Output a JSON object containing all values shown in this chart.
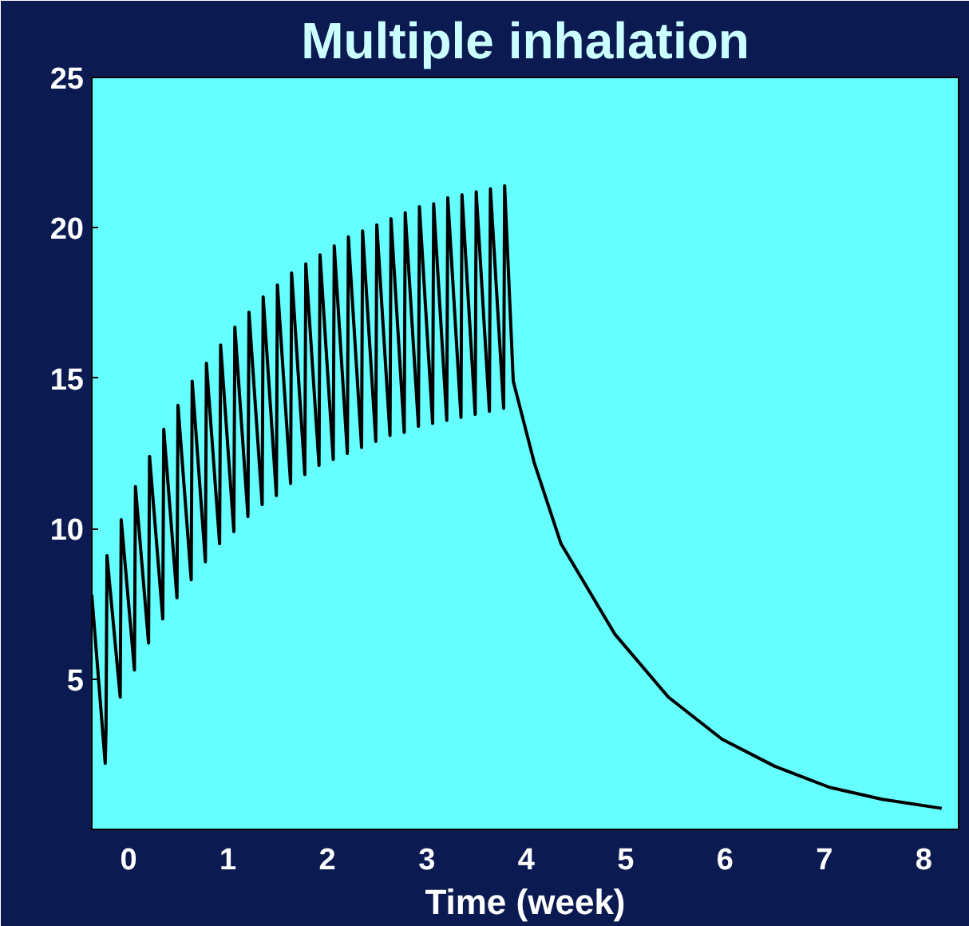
{
  "chart_data": {
    "type": "line",
    "title": "Multiple inhalation",
    "xlabel": "Time (week)",
    "xlim": [
      -0.37,
      8.35
    ],
    "ylim": [
      0,
      25
    ],
    "xticks": [
      0,
      1,
      2,
      3,
      4,
      5,
      6,
      7,
      8
    ],
    "yticks": [
      5,
      10,
      15,
      20,
      25
    ],
    "series": [
      {
        "color": "#000000",
        "x": [
          -0.37,
          -0.235,
          -0.227,
          -0.217,
          -0.084,
          -0.074,
          0.059,
          0.069,
          0.201,
          0.211,
          0.344,
          0.354,
          0.487,
          0.497,
          0.63,
          0.64,
          0.773,
          0.783,
          0.916,
          0.926,
          1.059,
          1.069,
          1.201,
          1.211,
          1.344,
          1.354,
          1.487,
          1.497,
          1.63,
          1.64,
          1.773,
          1.783,
          1.916,
          1.926,
          2.059,
          2.069,
          2.201,
          2.211,
          2.344,
          2.354,
          2.487,
          2.497,
          2.63,
          2.64,
          2.773,
          2.783,
          2.916,
          2.926,
          3.059,
          3.069,
          3.201,
          3.211,
          3.344,
          3.354,
          3.487,
          3.497,
          3.63,
          3.64,
          3.773,
          3.783,
          3.87,
          4.08,
          4.35,
          4.89,
          5.43,
          5.97,
          6.5,
          7.05,
          7.58,
          8.18
        ],
        "values": [
          7.8,
          2.2,
          3.3,
          9.1,
          4.4,
          10.3,
          5.3,
          11.4,
          6.2,
          12.4,
          7.0,
          13.3,
          7.7,
          14.1,
          8.3,
          14.9,
          8.9,
          15.5,
          9.5,
          16.1,
          9.9,
          16.7,
          10.4,
          17.2,
          10.8,
          17.7,
          11.1,
          18.1,
          11.5,
          18.5,
          11.8,
          18.8,
          12.1,
          19.1,
          12.3,
          19.4,
          12.5,
          19.7,
          12.7,
          19.9,
          12.9,
          20.1,
          13.1,
          20.3,
          13.2,
          20.5,
          13.4,
          20.7,
          13.5,
          20.8,
          13.6,
          21.0,
          13.7,
          21.1,
          13.8,
          21.2,
          13.9,
          21.3,
          14.0,
          21.4,
          14.9,
          12.2,
          9.5,
          6.5,
          4.4,
          3.0,
          2.1,
          1.4,
          1.0,
          0.7
        ]
      }
    ]
  }
}
